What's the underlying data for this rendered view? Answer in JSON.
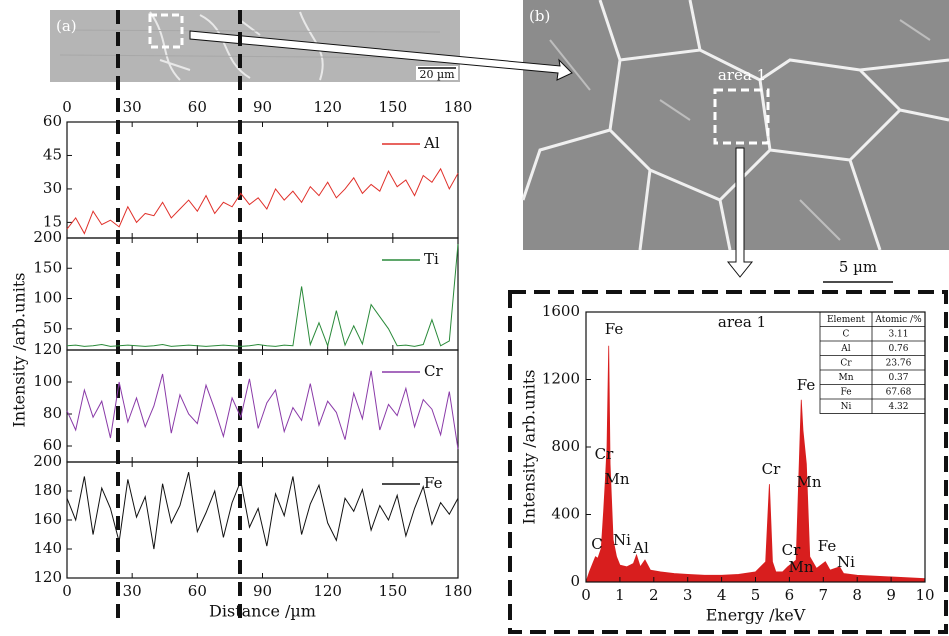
{
  "figure": {
    "panel_a": "(a)",
    "panel_b": "(b)",
    "scale_a": "20 µm",
    "scale_b": "5 µm",
    "region": "area 1"
  },
  "chart_data": [
    {
      "type": "line",
      "ylabel": "Intensity /arb.units",
      "x": [
        0,
        4,
        8,
        12,
        16,
        20,
        24,
        28,
        32,
        36,
        40,
        44,
        48,
        52,
        56,
        60,
        64,
        68,
        72,
        76,
        80,
        84,
        88,
        92,
        96,
        100,
        104,
        108,
        112,
        116,
        120,
        124,
        128,
        132,
        136,
        140,
        144,
        148,
        152,
        156,
        160,
        164,
        168,
        172,
        176,
        180
      ],
      "xlim": [
        0,
        180
      ],
      "xticks": [
        0,
        30,
        60,
        90,
        120,
        150,
        180
      ],
      "ylim": [
        8,
        60
      ],
      "yticks": [
        15,
        30,
        45,
        60
      ],
      "series": [
        {
          "name": "Al",
          "color": "#e0302a",
          "values": [
            12,
            17,
            10,
            20,
            14,
            16,
            13,
            22,
            15,
            19,
            18,
            24,
            17,
            21,
            25,
            20,
            27,
            19,
            24,
            22,
            28,
            23,
            26,
            21,
            30,
            25,
            29,
            24,
            31,
            27,
            33,
            26,
            30,
            35,
            28,
            32,
            29,
            38,
            31,
            34,
            27,
            36,
            33,
            39,
            30,
            37
          ]
        }
      ]
    },
    {
      "type": "line",
      "x": [
        0,
        4,
        8,
        12,
        16,
        20,
        24,
        28,
        32,
        36,
        40,
        44,
        48,
        52,
        56,
        60,
        64,
        68,
        72,
        76,
        80,
        84,
        88,
        92,
        96,
        100,
        104,
        108,
        112,
        116,
        120,
        124,
        128,
        132,
        136,
        140,
        144,
        148,
        152,
        156,
        160,
        164,
        168,
        172,
        176,
        180
      ],
      "xlim": [
        0,
        180
      ],
      "xticks": [
        0,
        30,
        60,
        90,
        120,
        150,
        180
      ],
      "ylim": [
        15,
        200
      ],
      "yticks": [
        50,
        100,
        150,
        200
      ],
      "series": [
        {
          "name": "Ti",
          "color": "#2a8a3a",
          "values": [
            22,
            23,
            21,
            22,
            24,
            21,
            22,
            23,
            22,
            21,
            22,
            24,
            21,
            22,
            23,
            22,
            21,
            22,
            23,
            22,
            21,
            22,
            24,
            22,
            21,
            23,
            22,
            120,
            24,
            60,
            22,
            80,
            23,
            55,
            25,
            90,
            70,
            50,
            22,
            23,
            21,
            24,
            65,
            22,
            30,
            190
          ]
        }
      ]
    },
    {
      "type": "line",
      "x": [
        0,
        4,
        8,
        12,
        16,
        20,
        24,
        28,
        32,
        36,
        40,
        44,
        48,
        52,
        56,
        60,
        64,
        68,
        72,
        76,
        80,
        84,
        88,
        92,
        96,
        100,
        104,
        108,
        112,
        116,
        120,
        124,
        128,
        132,
        136,
        140,
        144,
        148,
        152,
        156,
        160,
        164,
        168,
        172,
        176,
        180
      ],
      "xlim": [
        0,
        180
      ],
      "xticks": [
        0,
        30,
        60,
        90,
        120,
        150,
        180
      ],
      "ylim": [
        50,
        120
      ],
      "yticks": [
        60,
        80,
        100,
        120
      ],
      "series": [
        {
          "name": "Cr",
          "color": "#8a3aa8",
          "values": [
            82,
            70,
            95,
            78,
            88,
            65,
            100,
            75,
            90,
            72,
            85,
            105,
            68,
            92,
            80,
            74,
            98,
            83,
            66,
            90,
            78,
            102,
            71,
            87,
            95,
            69,
            84,
            76,
            99,
            73,
            88,
            81,
            64,
            93,
            77,
            107,
            70,
            86,
            79,
            96,
            72,
            89,
            83,
            67,
            94,
            58
          ]
        }
      ]
    },
    {
      "type": "line",
      "xlabel": "Distance /µm",
      "x": [
        0,
        4,
        8,
        12,
        16,
        20,
        24,
        28,
        32,
        36,
        40,
        44,
        48,
        52,
        56,
        60,
        64,
        68,
        72,
        76,
        80,
        84,
        88,
        92,
        96,
        100,
        104,
        108,
        112,
        116,
        120,
        124,
        128,
        132,
        136,
        140,
        144,
        148,
        152,
        156,
        160,
        164,
        168,
        172,
        176,
        180
      ],
      "xlim": [
        0,
        180
      ],
      "xticks": [
        0,
        30,
        60,
        90,
        120,
        150,
        180
      ],
      "ylim": [
        120,
        200
      ],
      "yticks": [
        120,
        140,
        160,
        180,
        200
      ],
      "series": [
        {
          "name": "Fe",
          "color": "#111111",
          "values": [
            175,
            160,
            190,
            150,
            182,
            168,
            145,
            188,
            162,
            176,
            140,
            185,
            158,
            170,
            193,
            152,
            165,
            180,
            148,
            172,
            187,
            155,
            168,
            142,
            178,
            163,
            190,
            150,
            171,
            184,
            158,
            146,
            175,
            166,
            181,
            153,
            170,
            160,
            177,
            149,
            168,
            183,
            157,
            172,
            164,
            175
          ]
        }
      ]
    },
    {
      "type": "area",
      "title": "area 1",
      "xlabel": "Energy /keV",
      "ylabel": "Intensity /arb.units",
      "color": "#d81e1e",
      "x": [
        0,
        0.1,
        0.2,
        0.28,
        0.35,
        0.45,
        0.52,
        0.57,
        0.62,
        0.67,
        0.71,
        0.75,
        0.8,
        0.9,
        1.0,
        1.2,
        1.4,
        1.49,
        1.6,
        1.74,
        1.9,
        2.2,
        2.6,
        3.0,
        3.5,
        4.0,
        4.5,
        5.0,
        5.3,
        5.41,
        5.5,
        5.6,
        5.8,
        5.95,
        6.2,
        6.35,
        6.4,
        6.5,
        6.6,
        6.8,
        7.06,
        7.2,
        7.48,
        7.6,
        8.0,
        9.0,
        10.0
      ],
      "values": [
        0,
        60,
        110,
        150,
        140,
        200,
        420,
        600,
        800,
        1400,
        700,
        500,
        250,
        150,
        100,
        90,
        110,
        160,
        90,
        130,
        70,
        60,
        50,
        45,
        40,
        40,
        45,
        60,
        120,
        580,
        120,
        60,
        60,
        90,
        130,
        1080,
        900,
        700,
        150,
        80,
        120,
        70,
        90,
        50,
        40,
        30,
        20
      ],
      "xlim": [
        0,
        10
      ],
      "xticks": [
        0,
        1,
        2,
        3,
        4,
        5,
        6,
        7,
        8,
        9,
        10
      ],
      "ylim": [
        0,
        1600
      ],
      "yticks": [
        0,
        400,
        800,
        1200,
        1600
      ],
      "annotations": [
        "Fe",
        "Cr",
        "Mn",
        "C",
        "Ni",
        "Al",
        "Cr",
        "Fe",
        "Mn",
        "Cr",
        "Mn",
        "Fe",
        "Ni"
      ]
    }
  ],
  "table": {
    "columns": [
      "Element",
      "Atomic /%"
    ],
    "rows": [
      [
        "C",
        "3.11"
      ],
      [
        "Al",
        "0.76"
      ],
      [
        "Cr",
        "23.76"
      ],
      [
        "Mn",
        "0.37"
      ],
      [
        "Fe",
        "67.68"
      ],
      [
        "Ni",
        "4.32"
      ]
    ]
  }
}
